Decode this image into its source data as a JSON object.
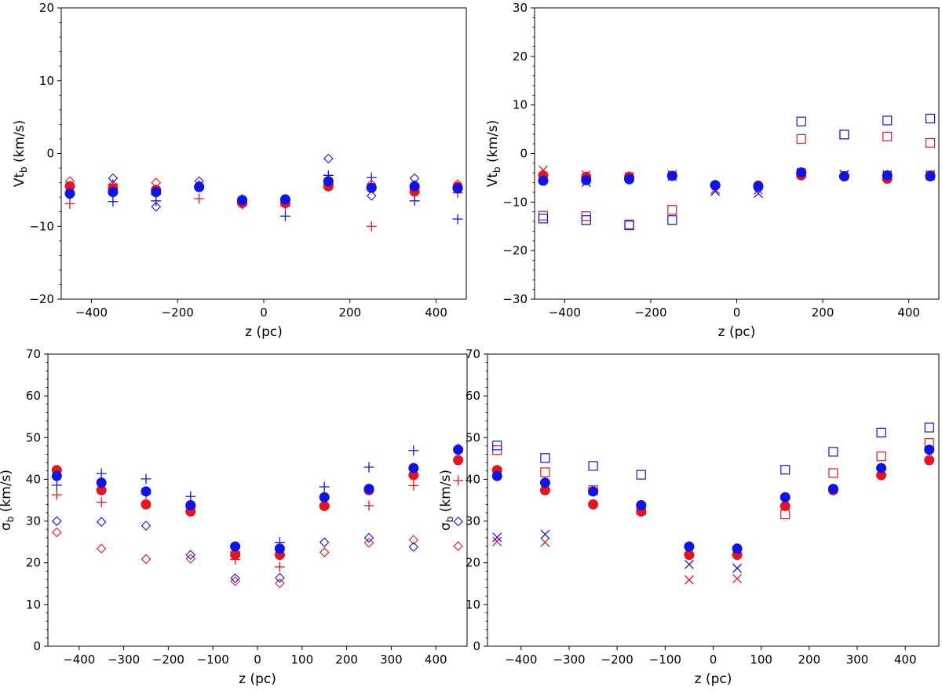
{
  "colors": {
    "red": "#e8141b",
    "blue": "#0c14ee"
  },
  "chart_data": [
    {
      "type": "scatter",
      "title": "",
      "xlabel": "z (pc)",
      "ylabel_main": "Vt",
      "ylabel_sub": "b",
      "ylabel_unit": " (km/s)",
      "xlim": [
        -470,
        470
      ],
      "ylim": [
        -20,
        20
      ],
      "xticks": [
        -400,
        -200,
        0,
        200,
        400
      ],
      "xtick_labels": [
        "−400",
        "−200",
        "0",
        "200",
        "400"
      ],
      "yticks": [
        -20,
        -10,
        0,
        10,
        20
      ],
      "ytick_labels": [
        "−20",
        "−10",
        "0",
        "10",
        "20"
      ],
      "x": [
        -450,
        -350,
        -250,
        -150,
        -50,
        50,
        150,
        250,
        350,
        450
      ],
      "series": [
        {
          "name": "red circle",
          "color": "red",
          "marker": "circle",
          "values": [
            -4.5,
            -4.8,
            -5.0,
            -4.6,
            -6.8,
            -6.8,
            -4.5,
            -4.7,
            -5.2,
            -4.6
          ]
        },
        {
          "name": "blue circle",
          "color": "blue",
          "marker": "circle",
          "values": [
            -5.5,
            -5.3,
            -5.3,
            -4.6,
            -6.4,
            -6.3,
            -3.8,
            -4.7,
            -4.5,
            -4.8
          ]
        },
        {
          "name": "red plus",
          "color": "red",
          "marker": "plus",
          "values": [
            -6.9,
            -4.2,
            -5.6,
            -6.2,
            -7.0,
            -7.2,
            -4.2,
            -10.0,
            -4.8,
            -5.4
          ]
        },
        {
          "name": "blue plus",
          "color": "blue",
          "marker": "plus",
          "values": [
            -5.6,
            -6.6,
            -6.5,
            -4.6,
            -6.3,
            -8.6,
            -3.0,
            -3.3,
            -6.5,
            -9.0
          ]
        },
        {
          "name": "red diamond",
          "color": "red",
          "marker": "diamond",
          "values": [
            -3.8,
            -4.3,
            -4.0,
            -4.3,
            -6.8,
            -6.6,
            -3.8,
            -4.2,
            -4.3,
            -4.2
          ]
        },
        {
          "name": "blue diamond",
          "color": "blue",
          "marker": "diamond",
          "values": [
            -5.6,
            -3.4,
            -7.3,
            -3.8,
            -6.4,
            -6.4,
            -0.7,
            -5.8,
            -3.4,
            -4.6
          ]
        }
      ]
    },
    {
      "type": "scatter",
      "title": "",
      "xlabel": "z (pc)",
      "ylabel_main": "Vt",
      "ylabel_sub": "b",
      "ylabel_unit": " (km/s)",
      "xlim": [
        -470,
        470
      ],
      "ylim": [
        -30,
        30
      ],
      "xticks": [
        -400,
        -200,
        0,
        200,
        400
      ],
      "xtick_labels": [
        "−400",
        "−200",
        "0",
        "200",
        "400"
      ],
      "yticks": [
        -30,
        -20,
        -10,
        0,
        10,
        20,
        30
      ],
      "ytick_labels": [
        "−30",
        "−20",
        "−10",
        "0",
        "10",
        "20",
        "30"
      ],
      "x": [
        -450,
        -350,
        -250,
        -150,
        -50,
        50,
        150,
        250,
        350,
        450
      ],
      "series": [
        {
          "name": "red circle",
          "color": "red",
          "marker": "circle",
          "values": [
            -4.5,
            -4.8,
            -4.8,
            -4.6,
            -6.6,
            -6.6,
            -4.5,
            -4.7,
            -5.2,
            -4.5
          ]
        },
        {
          "name": "blue circle",
          "color": "blue",
          "marker": "circle",
          "values": [
            -5.6,
            -5.5,
            -5.3,
            -4.6,
            -6.5,
            -6.8,
            -3.9,
            -4.7,
            -4.5,
            -4.7
          ]
        },
        {
          "name": "red cross",
          "color": "red",
          "marker": "x",
          "values": [
            -3.4,
            -4.4,
            -4.8,
            -4.3,
            -7.4,
            -7.5,
            -3.9,
            -4.3,
            -4.6,
            -4.3
          ]
        },
        {
          "name": "blue cross",
          "color": "blue",
          "marker": "x",
          "values": [
            -5.3,
            -5.9,
            -5.0,
            -4.7,
            -7.8,
            -8.2,
            -4.1,
            -4.4,
            -4.4,
            -4.6
          ]
        },
        {
          "name": "red square",
          "color": "red",
          "marker": "square",
          "values": [
            -12.8,
            -12.9,
            -14.6,
            -11.6,
            null,
            null,
            3.0,
            3.9,
            3.5,
            2.2
          ]
        },
        {
          "name": "blue square",
          "color": "blue",
          "marker": "square",
          "values": [
            -13.4,
            -13.7,
            -14.8,
            -13.7,
            null,
            null,
            6.6,
            3.9,
            6.8,
            7.2
          ]
        }
      ]
    },
    {
      "type": "scatter",
      "title": "",
      "xlabel": "z (pc)",
      "ylabel_main": "σ",
      "ylabel_sub": "b",
      "ylabel_unit": " (km/s)",
      "xlim": [
        -470,
        470
      ],
      "ylim": [
        0,
        70
      ],
      "xticks": [
        -400,
        -300,
        -200,
        -100,
        0,
        100,
        200,
        300,
        400
      ],
      "xtick_labels": [
        "−400",
        "−300",
        "−200",
        "−100",
        "0",
        "100",
        "200",
        "300",
        "400"
      ],
      "yticks": [
        0,
        10,
        20,
        30,
        40,
        50,
        60,
        70
      ],
      "ytick_labels": [
        "0",
        "10",
        "20",
        "30",
        "40",
        "50",
        "60",
        "70"
      ],
      "x": [
        -450,
        -350,
        -250,
        -150,
        -50,
        50,
        150,
        250,
        350,
        450
      ],
      "series": [
        {
          "name": "red circle",
          "color": "red",
          "marker": "circle",
          "values": [
            42.2,
            37.4,
            34.0,
            32.3,
            21.9,
            21.9,
            33.6,
            37.4,
            41.0,
            44.6
          ]
        },
        {
          "name": "blue circle",
          "color": "blue",
          "marker": "circle",
          "values": [
            40.8,
            39.2,
            37.1,
            33.8,
            23.9,
            23.4,
            35.7,
            37.7,
            42.7,
            47.1
          ]
        },
        {
          "name": "red plus",
          "color": "red",
          "marker": "plus",
          "values": [
            36.3,
            34.5,
            36.5,
            33.2,
            20.8,
            19.0,
            33.8,
            33.7,
            38.5,
            39.7
          ]
        },
        {
          "name": "blue plus",
          "color": "blue",
          "marker": "plus",
          "values": [
            38.6,
            41.4,
            40.1,
            35.9,
            22.6,
            24.9,
            38.2,
            42.9,
            46.9,
            47.4
          ]
        },
        {
          "name": "red diamond",
          "color": "red",
          "marker": "diamond",
          "values": [
            27.3,
            23.4,
            20.9,
            21.0,
            15.6,
            15.1,
            22.5,
            24.8,
            25.5,
            24.0
          ]
        },
        {
          "name": "blue diamond",
          "color": "blue",
          "marker": "diamond",
          "values": [
            30.0,
            29.8,
            28.9,
            21.9,
            16.3,
            16.4,
            24.9,
            26.0,
            23.8,
            29.9
          ]
        }
      ]
    },
    {
      "type": "scatter",
      "title": "",
      "xlabel": "z (pc)",
      "ylabel_main": "σ",
      "ylabel_sub": "b",
      "ylabel_unit": " (km/s)",
      "xlim": [
        -470,
        470
      ],
      "ylim": [
        0,
        70
      ],
      "xticks": [
        -400,
        -300,
        -200,
        -100,
        0,
        100,
        200,
        300,
        400
      ],
      "xtick_labels": [
        "−400",
        "−300",
        "−200",
        "−100",
        "0",
        "100",
        "200",
        "300",
        "400"
      ],
      "yticks": [
        0,
        10,
        20,
        30,
        40,
        50,
        60,
        70
      ],
      "ytick_labels": [
        "0",
        "10",
        "20",
        "30",
        "40",
        "50",
        "60",
        "70"
      ],
      "x": [
        -450,
        -350,
        -250,
        -150,
        -50,
        50,
        150,
        250,
        350,
        450
      ],
      "series": [
        {
          "name": "red circle",
          "color": "red",
          "marker": "circle",
          "values": [
            42.2,
            37.4,
            34.0,
            32.3,
            21.9,
            21.9,
            33.6,
            37.4,
            41.0,
            44.6
          ]
        },
        {
          "name": "blue circle",
          "color": "blue",
          "marker": "circle",
          "values": [
            40.8,
            39.2,
            37.1,
            33.8,
            23.9,
            23.4,
            35.7,
            37.7,
            42.7,
            47.1
          ]
        },
        {
          "name": "red cross",
          "color": "red",
          "marker": "x",
          "values": [
            25.1,
            24.9,
            null,
            null,
            15.9,
            16.2,
            null,
            null,
            null,
            null
          ]
        },
        {
          "name": "blue cross",
          "color": "blue",
          "marker": "x",
          "values": [
            26.1,
            26.8,
            null,
            null,
            19.6,
            18.7,
            null,
            null,
            null,
            null
          ]
        },
        {
          "name": "red square",
          "color": "red",
          "marker": "square",
          "values": [
            47.0,
            41.7,
            37.4,
            32.6,
            null,
            null,
            31.6,
            41.5,
            45.5,
            48.7
          ]
        },
        {
          "name": "blue square",
          "color": "blue",
          "marker": "square",
          "values": [
            48.1,
            45.1,
            43.2,
            41.1,
            null,
            null,
            42.3,
            46.6,
            51.2,
            52.4
          ]
        }
      ]
    }
  ]
}
